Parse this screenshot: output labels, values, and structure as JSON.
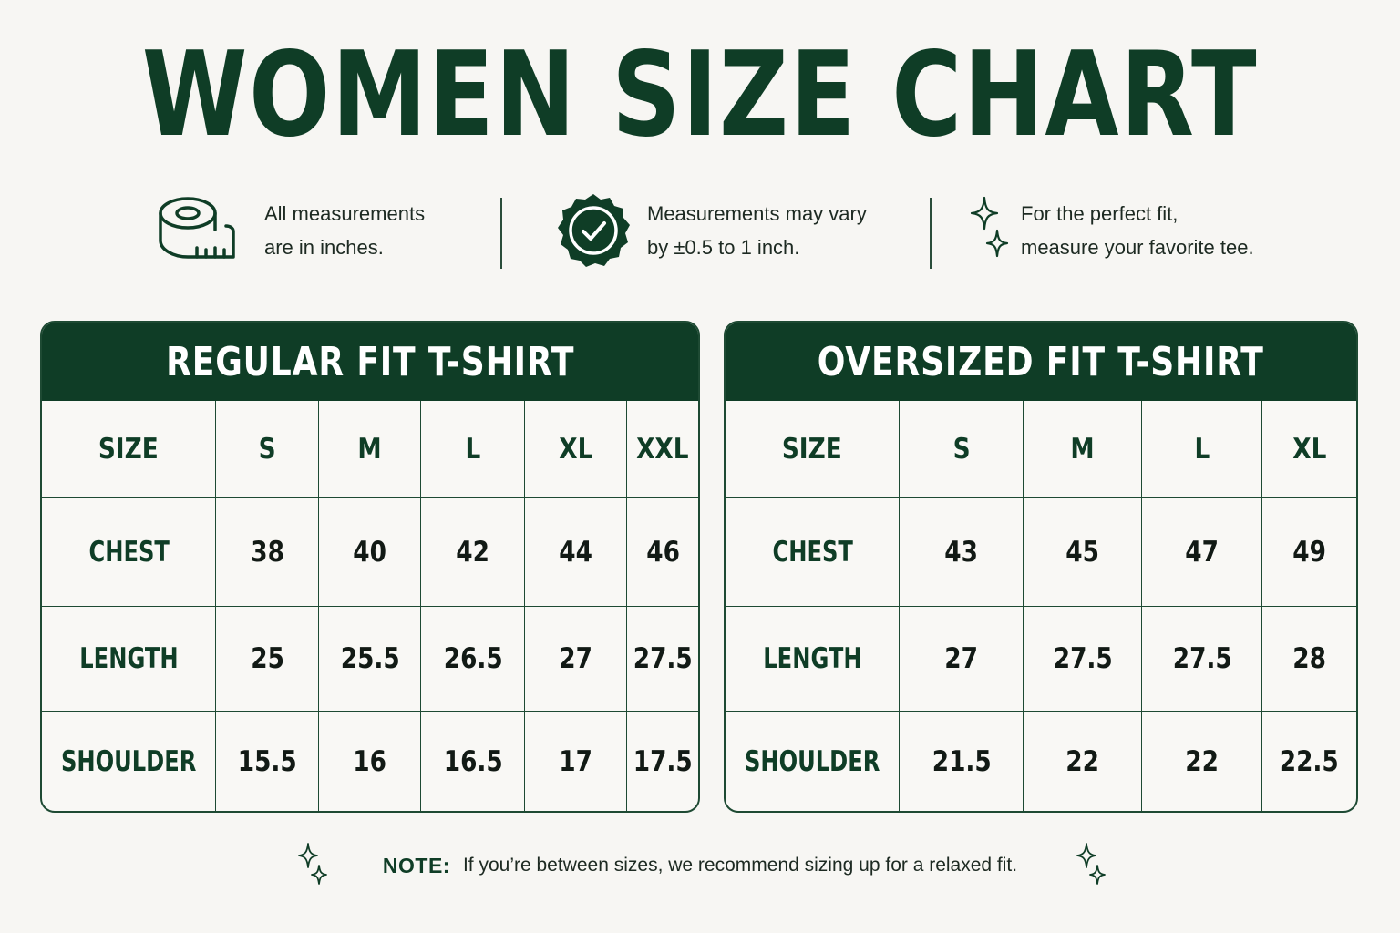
{
  "title": "WOMEN SIZE CHART",
  "info": [
    {
      "icon": "tape-measure-icon",
      "line1": "All measurements",
      "line2": "are in inches."
    },
    {
      "icon": "check-badge-icon",
      "line1": "Measurements may vary",
      "line2": "by ±0.5 to 1 inch."
    },
    {
      "icon": "sparkle-icon",
      "line1": "For the perfect fit,",
      "line2": "measure your favorite tee."
    }
  ],
  "tables": [
    {
      "title": "REGULAR FIT T-SHIRT",
      "header": [
        "SIZE",
        "S",
        "M",
        "L",
        "XL",
        "XXL"
      ],
      "rows": [
        {
          "label": "CHEST",
          "values": [
            "38",
            "40",
            "42",
            "44",
            "46"
          ]
        },
        {
          "label": "LENGTH",
          "values": [
            "25",
            "25.5",
            "26.5",
            "27",
            "27.5"
          ]
        },
        {
          "label": "SHOULDER",
          "values": [
            "15.5",
            "16",
            "16.5",
            "17",
            "17.5"
          ]
        }
      ]
    },
    {
      "title": "OVERSIZED FIT T-SHIRT",
      "header": [
        "SIZE",
        "S",
        "M",
        "L",
        "XL"
      ],
      "rows": [
        {
          "label": "CHEST",
          "values": [
            "43",
            "45",
            "47",
            "49"
          ]
        },
        {
          "label": "LENGTH",
          "values": [
            "27",
            "27.5",
            "27.5",
            "28"
          ]
        },
        {
          "label": "SHOULDER",
          "values": [
            "21.5",
            "22",
            "22",
            "22.5"
          ]
        }
      ]
    }
  ],
  "note": {
    "label": "NOTE:",
    "text": "If you’re between sizes, we recommend sizing up for a relaxed fit."
  },
  "colors": {
    "primary": "#0f3d26",
    "background": "#f7f6f3",
    "text": "#121a15"
  }
}
